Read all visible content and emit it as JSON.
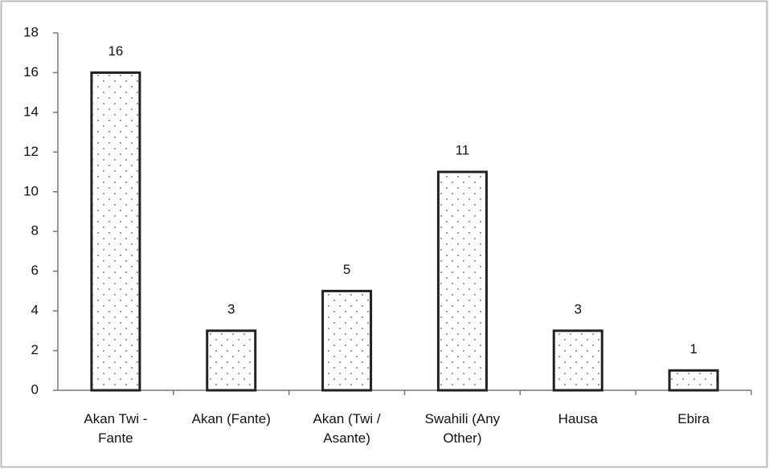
{
  "chart_data": {
    "type": "bar",
    "categories": [
      "Akan Twi - Fante",
      "Akan (Fante)",
      "Akan (Twi / Asante)",
      "Swahili (Any Other)",
      "Hausa",
      "Ebira"
    ],
    "values": [
      16,
      3,
      5,
      11,
      3,
      1
    ],
    "color": "#222222",
    "ylim": [
      0,
      18
    ],
    "yticks": [
      0,
      2,
      4,
      6,
      8,
      10,
      12,
      14,
      16,
      18
    ],
    "grid": false
  }
}
